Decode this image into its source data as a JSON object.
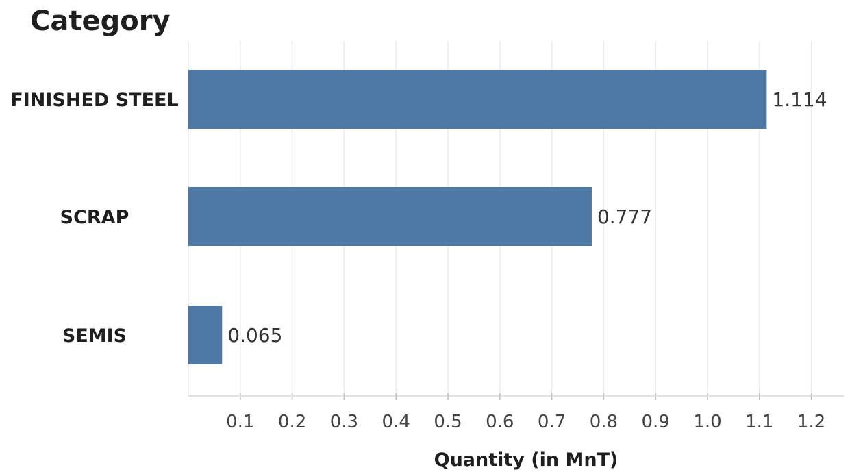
{
  "chart_data": {
    "type": "bar",
    "orientation": "horizontal",
    "title": "Category",
    "categories": [
      "FINISHED STEEL",
      "SCRAP",
      "SEMIS"
    ],
    "values": [
      1.114,
      0.777,
      0.065
    ],
    "value_labels": [
      "1.114",
      "0.777",
      "0.065"
    ],
    "xlabel": "Quantity  (in MnT)",
    "ylabel": "",
    "xlim": [
      0,
      1.25
    ],
    "xticks": [
      0.1,
      0.2,
      0.3,
      0.4,
      0.5,
      0.6,
      0.7,
      0.8,
      0.9,
      1.0,
      1.1,
      1.2
    ],
    "xtick_labels": [
      "0.1",
      "0.2",
      "0.3",
      "0.4",
      "0.5",
      "0.6",
      "0.7",
      "0.8",
      "0.9",
      "1.0",
      "1.1",
      "1.2"
    ],
    "grid": true,
    "bar_color": "#4e79a7"
  }
}
